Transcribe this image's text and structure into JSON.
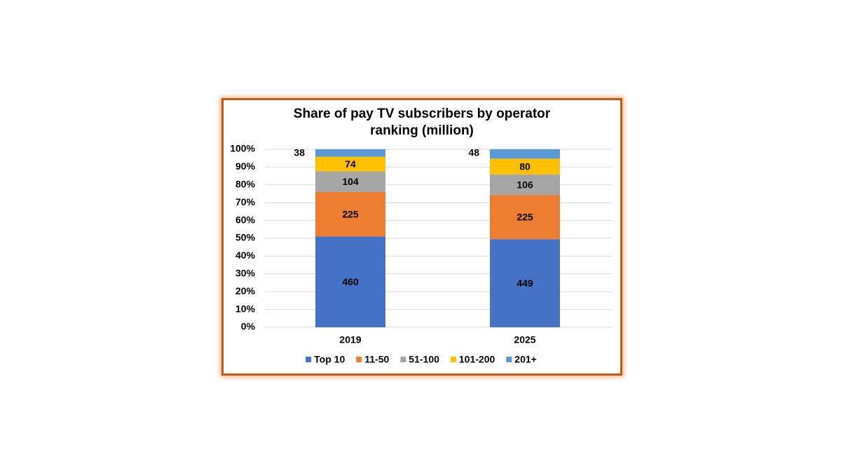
{
  "chart_data": {
    "type": "bar",
    "stacking": "percent",
    "title": "Share of pay TV subscribers by operator ranking (million)",
    "categories": [
      "2019",
      "2025"
    ],
    "series": [
      {
        "name": "Top 10",
        "color": "#4472c4",
        "values": [
          460,
          449
        ]
      },
      {
        "name": "11-50",
        "color": "#ed7d31",
        "values": [
          225,
          225
        ]
      },
      {
        "name": "51-100",
        "color": "#a5a5a5",
        "values": [
          104,
          106
        ]
      },
      {
        "name": "101-200",
        "color": "#ffc000",
        "values": [
          74,
          80
        ]
      },
      {
        "name": "201+",
        "color": "#5b9bd5",
        "values": [
          38,
          48
        ]
      }
    ],
    "ylim": [
      0,
      100
    ],
    "yticks": [
      {
        "value": 0,
        "label": "0%"
      },
      {
        "value": 10,
        "label": "10%"
      },
      {
        "value": 20,
        "label": "20%"
      },
      {
        "value": 30,
        "label": "30%"
      },
      {
        "value": 40,
        "label": "40%"
      },
      {
        "value": 50,
        "label": "50%"
      },
      {
        "value": 60,
        "label": "60%"
      },
      {
        "value": 70,
        "label": "70%"
      },
      {
        "value": 80,
        "label": "80%"
      },
      {
        "value": 90,
        "label": "90%"
      },
      {
        "value": 100,
        "label": "100%"
      }
    ],
    "grid": true,
    "legend": "bottom"
  }
}
